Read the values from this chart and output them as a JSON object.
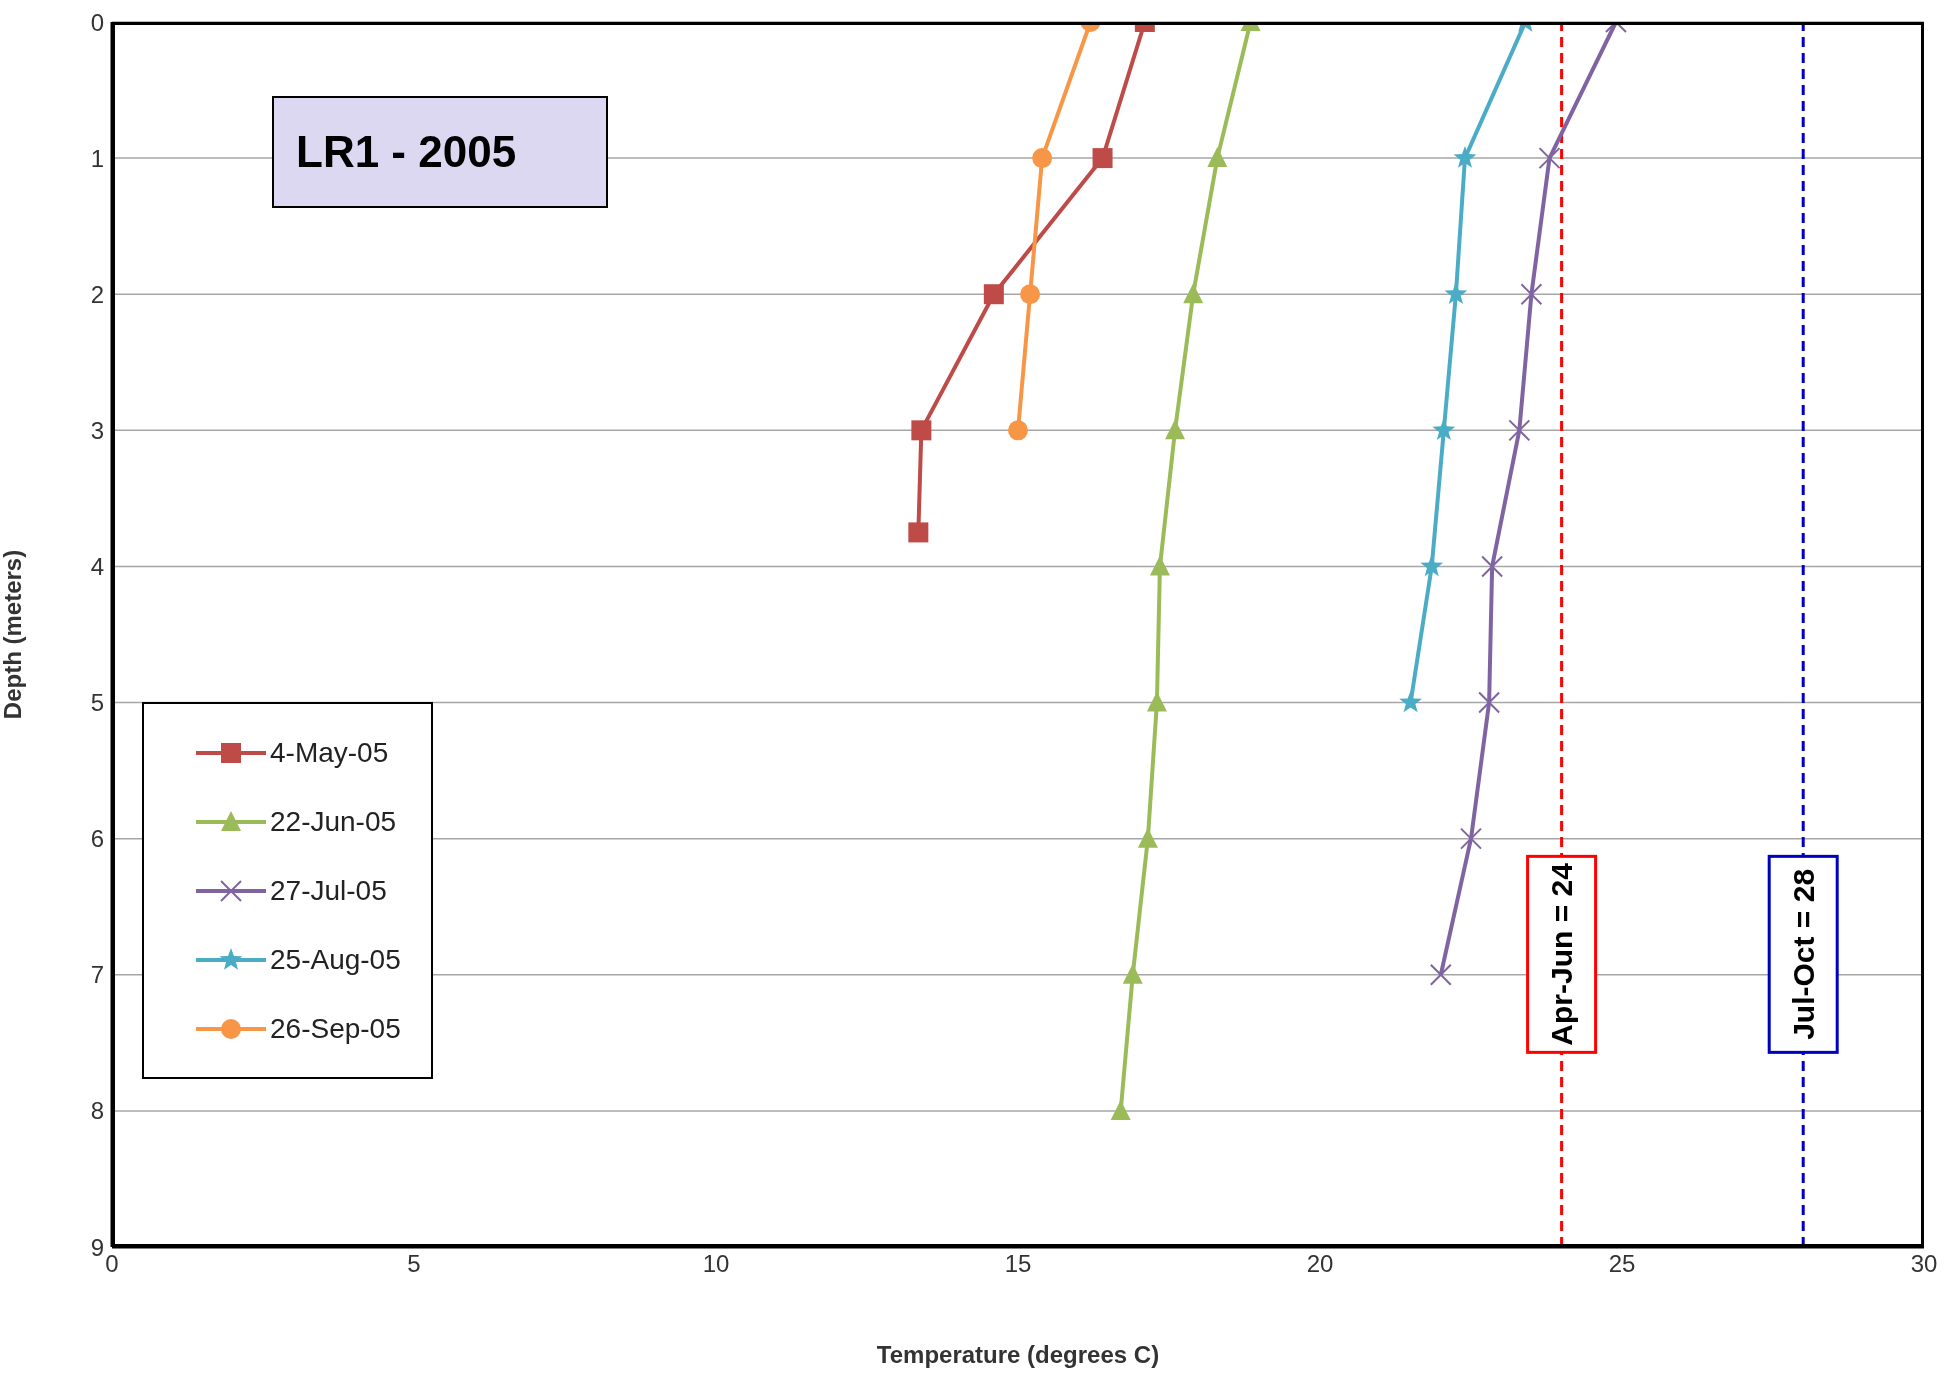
{
  "chart_data": {
    "type": "line",
    "title": "LR1 - 2005",
    "xlabel": "Temperature (degrees C)",
    "ylabel": "Depth (meters)",
    "xlim": [
      0,
      30
    ],
    "xticks": [
      0,
      5,
      10,
      15,
      20,
      25,
      30
    ],
    "ylim": [
      9,
      0
    ],
    "yticks": [
      0,
      1,
      2,
      3,
      4,
      5,
      6,
      7,
      8,
      9
    ],
    "grid": "y",
    "legend": "left",
    "series": [
      {
        "name": "4-May-05",
        "color": "#be4b48",
        "marker": "square",
        "x": [
          17.1,
          16.4,
          14.6,
          13.4,
          13.35
        ],
        "values": [
          0,
          1,
          2,
          3,
          3.75
        ]
      },
      {
        "name": "22-Jun-05",
        "color": "#9bbb59",
        "marker": "triangle",
        "x": [
          18.85,
          18.3,
          17.9,
          17.6,
          17.35,
          17.3,
          17.15,
          16.9,
          16.7
        ],
        "values": [
          0,
          1,
          2,
          3,
          4,
          5,
          6,
          7,
          8
        ]
      },
      {
        "name": "27-Jul-05",
        "color": "#8064a2",
        "marker": "cross",
        "x": [
          24.9,
          23.8,
          23.5,
          23.3,
          22.85,
          22.8,
          22.5,
          22.0
        ],
        "values": [
          0,
          1,
          2,
          3,
          4,
          5,
          6,
          7
        ]
      },
      {
        "name": "25-Aug-05",
        "color": "#4bacc6",
        "marker": "star",
        "x": [
          23.4,
          22.4,
          22.25,
          22.05,
          21.85,
          21.5
        ],
        "values": [
          0,
          1,
          2,
          3,
          4,
          5
        ]
      },
      {
        "name": "26-Sep-05",
        "color": "#f79646",
        "marker": "circle",
        "x": [
          16.2,
          15.4,
          15.2,
          15.0
        ],
        "values": [
          0,
          1,
          2,
          3
        ]
      }
    ],
    "ref_lines": [
      {
        "axis": "x",
        "value": 24,
        "label": "Apr-Jun = 24",
        "color": "#ff0000",
        "line_style": "dashed"
      },
      {
        "axis": "x",
        "value": 28,
        "label": "Jul-Oct = 28",
        "color": "#0000c0",
        "line_style": "dashed"
      }
    ]
  }
}
